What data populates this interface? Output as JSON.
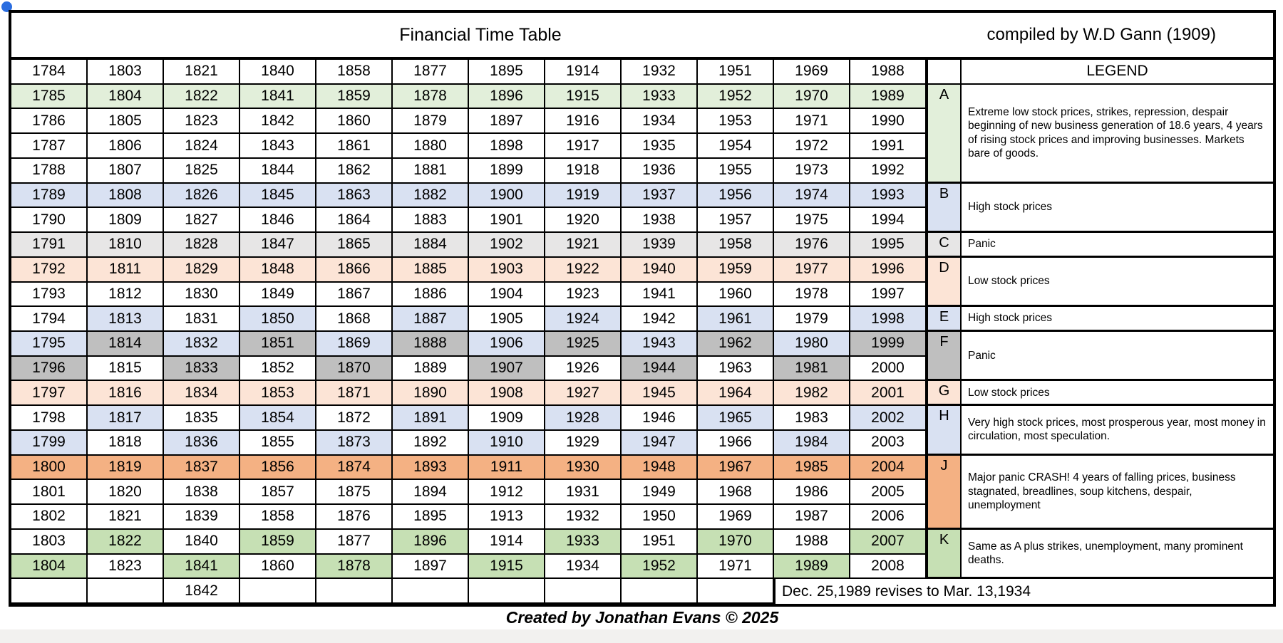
{
  "header": {
    "title": "Financial Time Table",
    "compiled_by": "compiled by W.D Gann (1909)"
  },
  "legend": {
    "header": "LEGEND",
    "blocks": [
      {
        "letter": "A",
        "span": 4,
        "fill": "a",
        "text": "Extreme low stock prices, strikes, repression, despair beginning of new business generation of 18.6 years, 4 years of rising stock prices and improving businesses. Markets bare of goods."
      },
      {
        "letter": "B",
        "span": 2,
        "fill": "b",
        "text": "High stock prices"
      },
      {
        "letter": "C",
        "span": 1,
        "fill": "l",
        "text": "Panic"
      },
      {
        "letter": "D",
        "span": 2,
        "fill": "p",
        "text": "Low stock prices"
      },
      {
        "letter": "E",
        "span": 1,
        "fill": "b",
        "text": "High stock prices"
      },
      {
        "letter": "F",
        "span": 2,
        "fill": "d",
        "text": "Panic"
      },
      {
        "letter": "G",
        "span": 1,
        "fill": "p",
        "text": "Low stock prices"
      },
      {
        "letter": "H",
        "span": 2,
        "fill": "b",
        "text": "Very high stock prices, most prosperous year, most money in circulation, most speculation."
      },
      {
        "letter": "J",
        "span": 3,
        "fill": "o",
        "text": "Major panic CRASH! 4 years of falling prices, business stagnated, breadlines, soup kitchens, despair, unemployment"
      },
      {
        "letter": "K",
        "span": 2,
        "fill": "g",
        "text": "Same as A plus strikes, unemployment, many prominent deaths."
      }
    ]
  },
  "table": {
    "footer_note": "Dec. 25,1989 revises to Mar. 13,1934",
    "fill_colors": {
      "w": "#ffffff",
      "a": "#e2efda",
      "g": "#c6e0b4",
      "b": "#d9e1f2",
      "l": "#e7e6e6",
      "d": "#bfbfbf",
      "p": "#fce4d6",
      "o": "#f4b183"
    },
    "rows": [
      {
        "values": [
          "1784",
          "1803",
          "1821",
          "1840",
          "1858",
          "1877",
          "1895",
          "1914",
          "1932",
          "1951",
          "1969",
          "1988"
        ],
        "fills": "wwwwwwwwwwww"
      },
      {
        "values": [
          "1785",
          "1804",
          "1822",
          "1841",
          "1859",
          "1878",
          "1896",
          "1915",
          "1933",
          "1952",
          "1970",
          "1989"
        ],
        "fills": "aaaaaaaaaaaa"
      },
      {
        "values": [
          "1786",
          "1805",
          "1823",
          "1842",
          "1860",
          "1879",
          "1897",
          "1916",
          "1934",
          "1953",
          "1971",
          "1990"
        ],
        "fills": "wwwwwwwwwwww"
      },
      {
        "values": [
          "1787",
          "1806",
          "1824",
          "1843",
          "1861",
          "1880",
          "1898",
          "1917",
          "1935",
          "1954",
          "1972",
          "1991"
        ],
        "fills": "wwwwwwwwwwww"
      },
      {
        "values": [
          "1788",
          "1807",
          "1825",
          "1844",
          "1862",
          "1881",
          "1899",
          "1918",
          "1936",
          "1955",
          "1973",
          "1992"
        ],
        "fills": "wwwwwwwwwwww"
      },
      {
        "values": [
          "1789",
          "1808",
          "1826",
          "1845",
          "1863",
          "1882",
          "1900",
          "1919",
          "1937",
          "1956",
          "1974",
          "1993"
        ],
        "fills": "bbbbbbbbbbbb"
      },
      {
        "values": [
          "1790",
          "1809",
          "1827",
          "1846",
          "1864",
          "1883",
          "1901",
          "1920",
          "1938",
          "1957",
          "1975",
          "1994"
        ],
        "fills": "wwwwwwwwwwww"
      },
      {
        "values": [
          "1791",
          "1810",
          "1828",
          "1847",
          "1865",
          "1884",
          "1902",
          "1921",
          "1939",
          "1958",
          "1976",
          "1995"
        ],
        "fills": "llllllllllll"
      },
      {
        "values": [
          "1792",
          "1811",
          "1829",
          "1848",
          "1866",
          "1885",
          "1903",
          "1922",
          "1940",
          "1959",
          "1977",
          "1996"
        ],
        "fills": "pppppppppppp"
      },
      {
        "values": [
          "1793",
          "1812",
          "1830",
          "1849",
          "1867",
          "1886",
          "1904",
          "1923",
          "1941",
          "1960",
          "1978",
          "1997"
        ],
        "fills": "wwwwwwwwwwww"
      },
      {
        "values": [
          "1794",
          "1813",
          "1831",
          "1850",
          "1868",
          "1887",
          "1905",
          "1924",
          "1942",
          "1961",
          "1979",
          "1998"
        ],
        "fills": "wbwbwbwbwbwb"
      },
      {
        "values": [
          "1795",
          "1814",
          "1832",
          "1851",
          "1869",
          "1888",
          "1906",
          "1925",
          "1943",
          "1962",
          "1980",
          "1999"
        ],
        "fills": "bdbdbdbdbdbd"
      },
      {
        "values": [
          "1796",
          "1815",
          "1833",
          "1852",
          "1870",
          "1889",
          "1907",
          "1926",
          "1944",
          "1963",
          "1981",
          "2000"
        ],
        "fills": "dwdwdwdwdwdw"
      },
      {
        "values": [
          "1797",
          "1816",
          "1834",
          "1853",
          "1871",
          "1890",
          "1908",
          "1927",
          "1945",
          "1964",
          "1982",
          "2001"
        ],
        "fills": "pppppppppppp"
      },
      {
        "values": [
          "1798",
          "1817",
          "1835",
          "1854",
          "1872",
          "1891",
          "1909",
          "1928",
          "1946",
          "1965",
          "1983",
          "2002"
        ],
        "fills": "wbwbwbwbwbwb"
      },
      {
        "values": [
          "1799",
          "1818",
          "1836",
          "1855",
          "1873",
          "1892",
          "1910",
          "1929",
          "1947",
          "1966",
          "1984",
          "2003"
        ],
        "fills": "bwbwbwbwbwbw"
      },
      {
        "values": [
          "1800",
          "1819",
          "1837",
          "1856",
          "1874",
          "1893",
          "1911",
          "1930",
          "1948",
          "1967",
          "1985",
          "2004"
        ],
        "fills": "oooooooooooo"
      },
      {
        "values": [
          "1801",
          "1820",
          "1838",
          "1857",
          "1875",
          "1894",
          "1912",
          "1931",
          "1949",
          "1968",
          "1986",
          "2005"
        ],
        "fills": "wwwwwwwwwwww"
      },
      {
        "values": [
          "1802",
          "1821",
          "1839",
          "1858",
          "1876",
          "1895",
          "1913",
          "1932",
          "1950",
          "1969",
          "1987",
          "2006"
        ],
        "fills": "wwwwwwwwwwww"
      },
      {
        "values": [
          "1803",
          "1822",
          "1840",
          "1859",
          "1877",
          "1896",
          "1914",
          "1933",
          "1951",
          "1970",
          "1988",
          "2007"
        ],
        "fills": "wgwgwgwgwgwg"
      },
      {
        "values": [
          "1804",
          "1823",
          "1841",
          "1860",
          "1878",
          "1897",
          "1915",
          "1934",
          "1952",
          "1971",
          "1989",
          "2008"
        ],
        "fills": "gwgwgwgwgwgw"
      },
      {
        "values": [
          "",
          "",
          "1842",
          "",
          "",
          "",
          "",
          "",
          "",
          ""
        ],
        "fills": "wwwwwwwwww"
      }
    ]
  },
  "footer": {
    "caption": "Created by Jonathan Evans © 2025"
  },
  "colors": {
    "border": "#000000",
    "selection_handle": "#2a6de0",
    "bottom_strip": "#f2f1ef"
  }
}
